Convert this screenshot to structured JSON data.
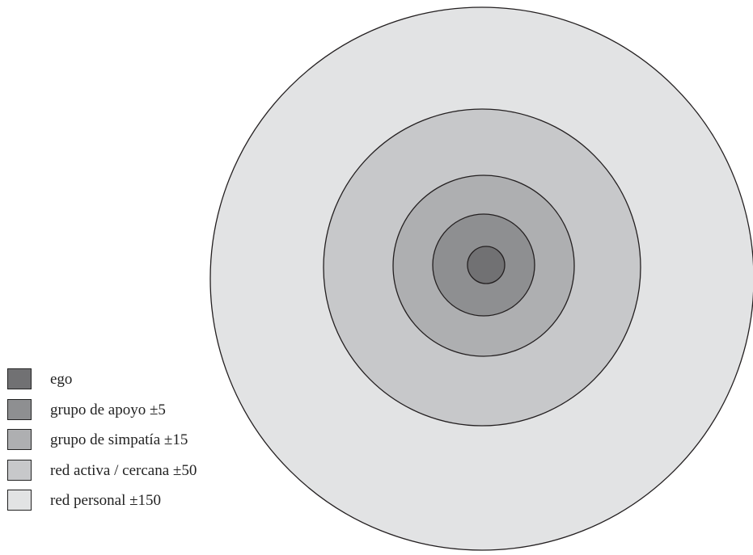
{
  "diagram": {
    "type": "concentric-circles",
    "stroke_color": "#231f20",
    "rings": [
      {
        "key": "red_personal",
        "fill": "#e2e3e4"
      },
      {
        "key": "red_activa",
        "fill": "#c7c8ca"
      },
      {
        "key": "grupo_simpatia",
        "fill": "#aeafb1"
      },
      {
        "key": "grupo_apoyo",
        "fill": "#8e8f91"
      },
      {
        "key": "ego",
        "fill": "#717173"
      }
    ]
  },
  "legend": {
    "items": [
      {
        "label": "ego",
        "color": "#717173"
      },
      {
        "label": "grupo de apoyo ±5",
        "color": "#8e8f91"
      },
      {
        "label": "grupo de simpatía ±15",
        "color": "#aeafb1"
      },
      {
        "label": "red activa / cercana ±50",
        "color": "#c7c8ca"
      },
      {
        "label": "red personal ±150",
        "color": "#e2e3e4"
      }
    ]
  }
}
